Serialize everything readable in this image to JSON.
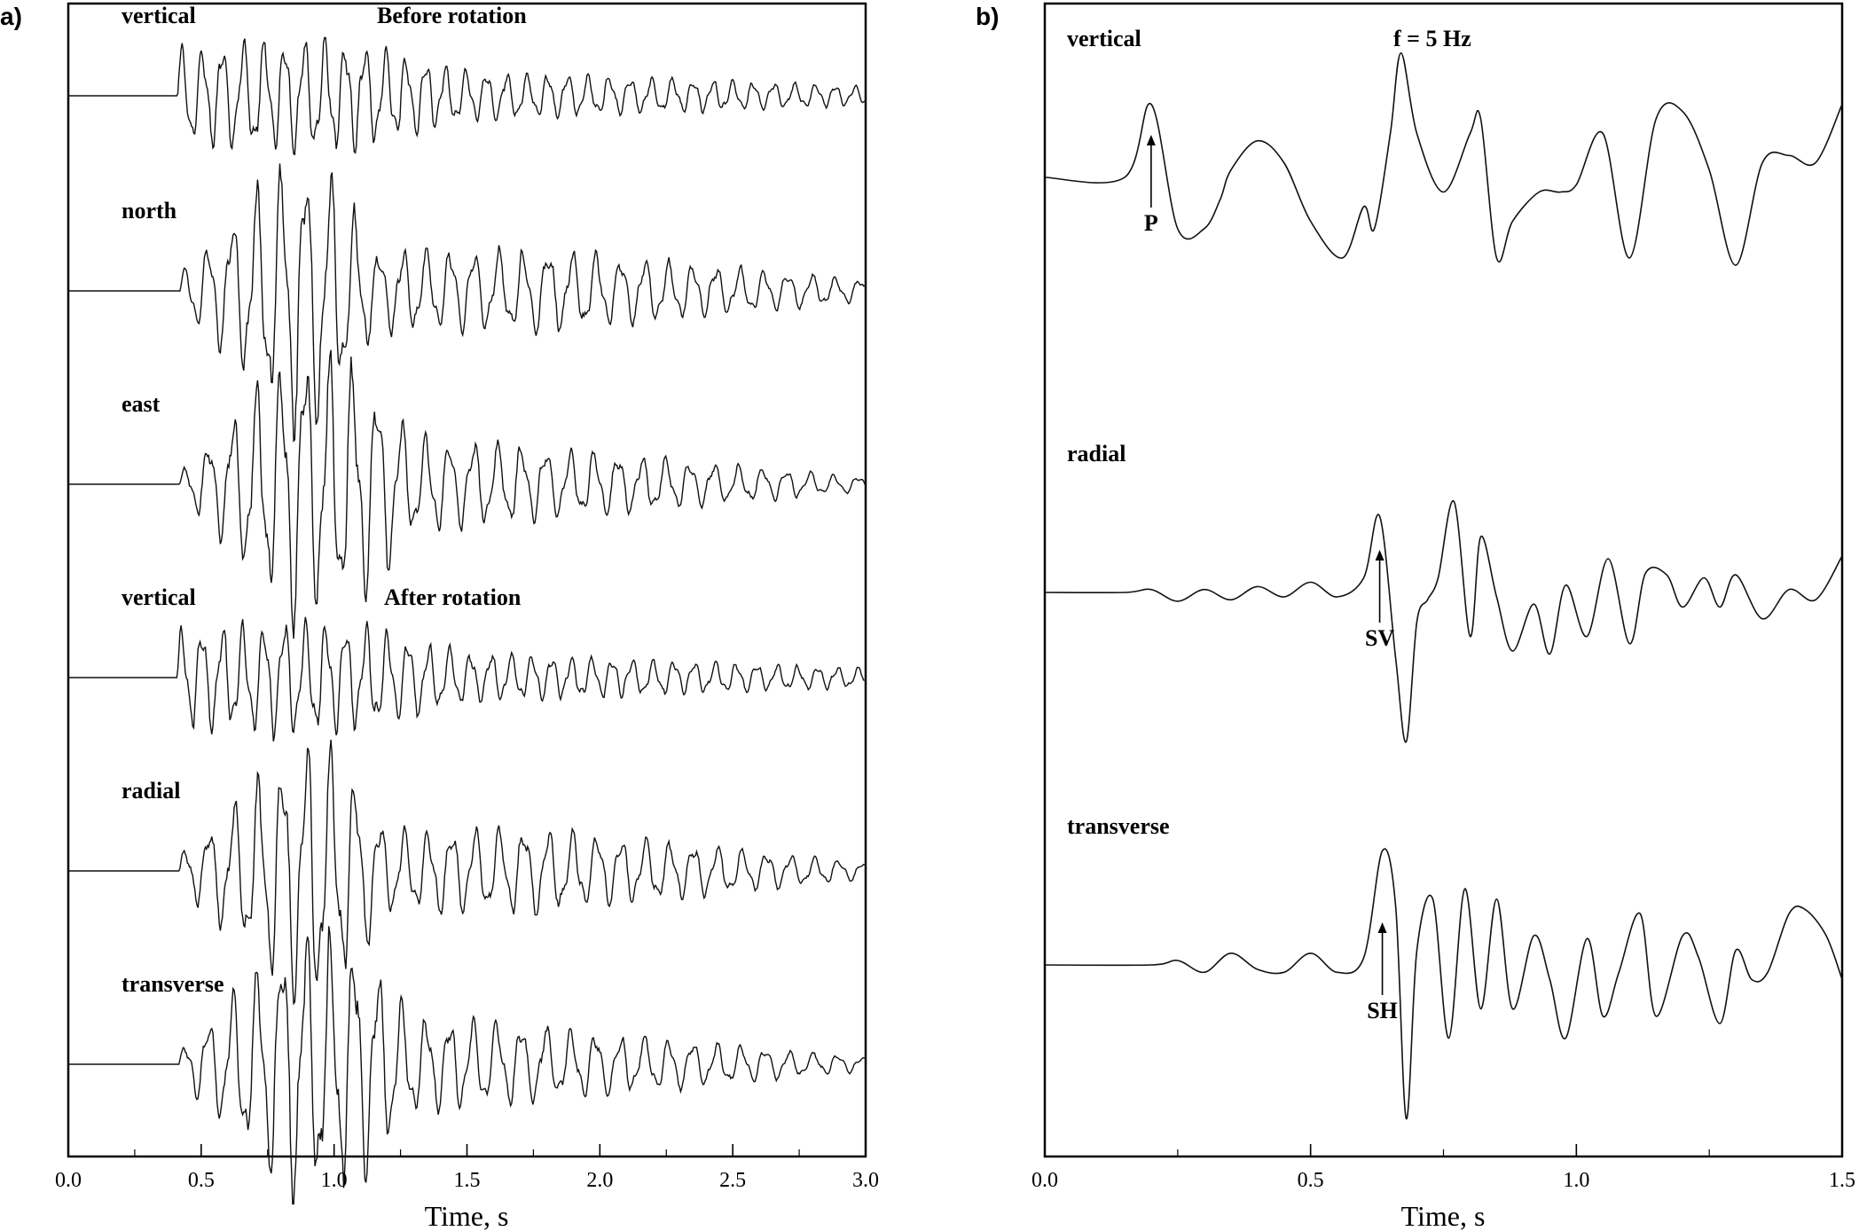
{
  "chart_data": [
    {
      "panel_label": "a)",
      "type": "line",
      "xlabel": "Time, s",
      "ylabel": "",
      "xlim": [
        0.0,
        3.0
      ],
      "x_ticks": [
        "0.0",
        "0.5",
        "1.0",
        "1.5",
        "2.0",
        "2.5",
        "3.0"
      ],
      "x_tick_values": [
        0.0,
        0.5,
        1.0,
        1.5,
        2.0,
        2.5,
        3.0
      ],
      "grid": false,
      "annotations": [
        {
          "text": "Before rotation",
          "near_trace": 0
        },
        {
          "text": "After rotation",
          "near_trace": 3
        }
      ],
      "series": [
        {
          "name": "vertical",
          "onset_s": 0.41,
          "pre_amplitude": 0.0,
          "envelope_s": [
            [
              0.41,
              0.35
            ],
            [
              0.85,
              0.42
            ],
            [
              1.1,
              0.38
            ],
            [
              1.5,
              0.18
            ],
            [
              3.0,
              0.07
            ]
          ],
          "dominant_freq_hz": 13
        },
        {
          "name": "north",
          "onset_s": 0.42,
          "envelope_s": [
            [
              0.42,
              0.12
            ],
            [
              0.85,
              1.0
            ],
            [
              1.0,
              0.85
            ],
            [
              1.15,
              0.3
            ],
            [
              1.8,
              0.3
            ],
            [
              3.0,
              0.08
            ]
          ],
          "dominant_freq_hz": 11
        },
        {
          "name": "east",
          "onset_s": 0.42,
          "envelope_s": [
            [
              0.42,
              0.08
            ],
            [
              0.85,
              1.0
            ],
            [
              1.1,
              0.85
            ],
            [
              1.3,
              0.35
            ],
            [
              3.0,
              0.05
            ]
          ],
          "dominant_freq_hz": 11
        },
        {
          "name": "vertical",
          "onset_s": 0.41,
          "envelope_s": [
            [
              0.41,
              0.35
            ],
            [
              0.85,
              0.42
            ],
            [
              1.1,
              0.38
            ],
            [
              1.5,
              0.18
            ],
            [
              3.0,
              0.07
            ]
          ],
          "dominant_freq_hz": 13
        },
        {
          "name": "radial",
          "onset_s": 0.42,
          "envelope_s": [
            [
              0.42,
              0.12
            ],
            [
              0.9,
              1.0
            ],
            [
              1.05,
              0.75
            ],
            [
              1.2,
              0.3
            ],
            [
              1.8,
              0.3
            ],
            [
              3.0,
              0.06
            ]
          ],
          "dominant_freq_hz": 11
        },
        {
          "name": "transverse",
          "onset_s": 0.42,
          "envelope_s": [
            [
              0.42,
              0.1
            ],
            [
              0.85,
              1.0
            ],
            [
              1.1,
              0.85
            ],
            [
              1.3,
              0.35
            ],
            [
              3.0,
              0.05
            ]
          ],
          "dominant_freq_hz": 11
        }
      ]
    },
    {
      "panel_label": "b)",
      "type": "line",
      "xlabel": "Time, s",
      "ylabel": "",
      "xlim": [
        0.0,
        1.5
      ],
      "x_ticks": [
        "0.0",
        "0.5",
        "1.0",
        "1.5"
      ],
      "x_tick_values": [
        0.0,
        0.5,
        1.0,
        1.5
      ],
      "grid": false,
      "annotations": [
        {
          "text": "f = 5 Hz",
          "near_trace": 0
        },
        {
          "text": "P",
          "near_trace": 0,
          "time_s": 0.2
        },
        {
          "text": "SV",
          "near_trace": 1,
          "time_s": 0.63
        },
        {
          "text": "SH",
          "near_trace": 2,
          "time_s": 0.635
        }
      ],
      "series": [
        {
          "name": "vertical",
          "x": [
            0.0,
            0.15,
            0.2,
            0.25,
            0.3,
            0.33,
            0.35,
            0.4,
            0.45,
            0.5,
            0.56,
            0.6,
            0.62,
            0.65,
            0.67,
            0.7,
            0.75,
            0.8,
            0.82,
            0.85,
            0.88,
            0.93,
            0.97,
            1.0,
            1.05,
            1.1,
            1.15,
            1.2,
            1.25,
            1.3,
            1.35,
            1.4,
            1.45,
            1.5
          ],
          "values": [
            0.0,
            0.0,
            0.5,
            -0.35,
            -0.35,
            -0.15,
            0.05,
            0.25,
            0.1,
            -0.3,
            -0.55,
            -0.2,
            -0.35,
            0.3,
            0.85,
            0.3,
            -0.1,
            0.3,
            0.4,
            -0.55,
            -0.3,
            -0.1,
            -0.1,
            -0.05,
            0.3,
            -0.55,
            0.4,
            0.45,
            0.05,
            -0.6,
            0.1,
            0.15,
            0.1,
            0.5
          ]
        },
        {
          "name": "radial",
          "x": [
            0.0,
            0.15,
            0.2,
            0.25,
            0.3,
            0.35,
            0.4,
            0.45,
            0.5,
            0.55,
            0.6,
            0.63,
            0.66,
            0.68,
            0.7,
            0.72,
            0.74,
            0.77,
            0.8,
            0.82,
            0.85,
            0.88,
            0.92,
            0.95,
            0.98,
            1.02,
            1.06,
            1.1,
            1.13,
            1.17,
            1.2,
            1.24,
            1.27,
            1.3,
            1.35,
            1.4,
            1.45,
            1.5
          ],
          "values": [
            0.0,
            0.0,
            0.02,
            -0.06,
            0.02,
            -0.05,
            0.04,
            -0.03,
            0.07,
            -0.03,
            0.1,
            0.52,
            -0.45,
            -1.02,
            -0.2,
            -0.05,
            0.1,
            0.62,
            -0.3,
            0.38,
            -0.03,
            -0.4,
            -0.08,
            -0.42,
            0.05,
            -0.3,
            0.23,
            -0.35,
            0.13,
            0.12,
            -0.1,
            0.1,
            -0.1,
            0.12,
            -0.18,
            0.02,
            -0.05,
            0.25
          ]
        },
        {
          "name": "transverse",
          "x": [
            0.0,
            0.2,
            0.25,
            0.3,
            0.35,
            0.4,
            0.45,
            0.5,
            0.55,
            0.6,
            0.635,
            0.66,
            0.68,
            0.7,
            0.73,
            0.76,
            0.79,
            0.82,
            0.85,
            0.88,
            0.92,
            0.95,
            0.98,
            1.02,
            1.05,
            1.08,
            1.12,
            1.15,
            1.2,
            1.23,
            1.27,
            1.3,
            1.33,
            1.36,
            1.4,
            1.43,
            1.47,
            1.5
          ],
          "values": [
            0.0,
            0.0,
            0.03,
            -0.05,
            0.08,
            -0.03,
            -0.05,
            0.08,
            -0.05,
            0.05,
            0.78,
            0.4,
            -1.05,
            0.1,
            0.45,
            -0.5,
            0.52,
            -0.3,
            0.45,
            -0.3,
            0.2,
            -0.1,
            -0.5,
            0.18,
            -0.35,
            -0.05,
            0.35,
            -0.35,
            0.2,
            0.05,
            -0.4,
            0.1,
            -0.1,
            -0.05,
            0.35,
            0.38,
            0.2,
            -0.1
          ]
        }
      ]
    }
  ]
}
